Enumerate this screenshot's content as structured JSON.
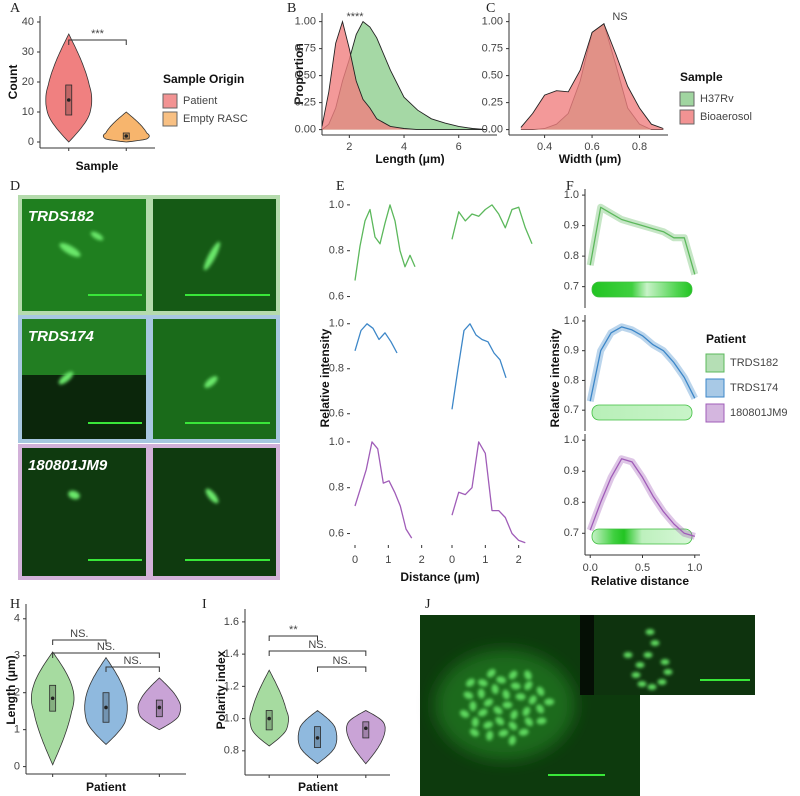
{
  "chart_data": [
    {
      "type": "violin",
      "label": "A",
      "ylabel": "Count",
      "xlabel": "Sample",
      "ylim": [
        -2,
        42
      ],
      "yticks": [
        0,
        10,
        20,
        30,
        40
      ],
      "legend_title": "Sample Origin",
      "annotations": [
        "***"
      ],
      "series": [
        {
          "name": "Patient",
          "color": "#f08080",
          "min": 0,
          "q1": 9,
          "median": 14,
          "q3": 19,
          "max": 36
        },
        {
          "name": "Empty RASC",
          "color": "#f7b56d",
          "min": 0,
          "q1": 1,
          "median": 2,
          "q3": 3,
          "max": 10
        }
      ]
    },
    {
      "type": "area",
      "label": "B",
      "ylabel": "Proportion",
      "xlabel": "Length (μm)",
      "xlim": [
        1,
        7.4
      ],
      "xticks": [
        2,
        4,
        6
      ],
      "ylim": [
        -0.05,
        1.08
      ],
      "yticks": [
        {
          "value": 0,
          "label": "0.00"
        },
        {
          "value": 0.25,
          "label": "0.25"
        },
        {
          "value": 0.5,
          "label": "0.50"
        },
        {
          "value": 0.75,
          "label": "0.75"
        },
        {
          "value": 1,
          "label": "1.00"
        }
      ],
      "annotations": [
        "****"
      ],
      "x": [
        1,
        1.25,
        1.5,
        1.75,
        2,
        2.25,
        2.5,
        2.75,
        3,
        3.5,
        4,
        4.5,
        5,
        5.5,
        6,
        6.5,
        7
      ],
      "series": [
        {
          "color": "#8fce8f",
          "values": [
            0,
            0.05,
            0.2,
            0.45,
            0.65,
            0.88,
            1,
            0.95,
            0.85,
            0.55,
            0.3,
            0.18,
            0.1,
            0.06,
            0.03,
            0.01,
            0
          ]
        },
        {
          "color": "#f08080",
          "values": [
            0.03,
            0.35,
            0.8,
            1,
            0.75,
            0.45,
            0.28,
            0.2,
            0.1,
            0.03,
            0.01,
            0,
            0,
            0,
            0,
            0,
            0
          ]
        }
      ]
    },
    {
      "type": "area",
      "label": "C",
      "xlabel": "Width (μm)",
      "xlim": [
        0.25,
        0.92
      ],
      "xticks": [
        0.4,
        0.6,
        0.8
      ],
      "ylim": [
        -0.05,
        1.08
      ],
      "yticks": [
        {
          "value": 0,
          "label": "0.00"
        },
        {
          "value": 0.25,
          "label": "0.25"
        },
        {
          "value": 0.5,
          "label": "0.50"
        },
        {
          "value": 0.75,
          "label": "0.75"
        },
        {
          "value": 1,
          "label": "1.00"
        }
      ],
      "annotations": [
        "NS"
      ],
      "legend_title": "Sample",
      "x": [
        0.3,
        0.35,
        0.4,
        0.45,
        0.5,
        0.55,
        0.6,
        0.65,
        0.7,
        0.75,
        0.8,
        0.85,
        0.9
      ],
      "series": [
        {
          "name": "H37Rv",
          "color": "#8fce8f",
          "values": [
            0,
            0,
            0.01,
            0.05,
            0.15,
            0.45,
            0.9,
            0.98,
            0.6,
            0.2,
            0.05,
            0,
            0
          ]
        },
        {
          "name": "Bioaerosol",
          "color": "#f08080",
          "values": [
            0.02,
            0.15,
            0.32,
            0.36,
            0.35,
            0.55,
            0.9,
            0.98,
            0.7,
            0.4,
            0.2,
            0.05,
            0.01
          ]
        }
      ]
    },
    {
      "type": "line",
      "label": "E",
      "ylabel": "Relative intensity",
      "xlabel": "Distance (μm)",
      "xlim": [
        -0.15,
        2.55
      ],
      "xticks": [
        0,
        1,
        2
      ],
      "ylim": [
        0.55,
        1.03
      ],
      "yticks": [
        0.6,
        0.8,
        {
          "value": 1,
          "label": "1.0"
        }
      ],
      "series": [
        {
          "color": "#5cb85c",
          "x": [
            0,
            0.15,
            0.3,
            0.45,
            0.6,
            0.75,
            0.9,
            1.05,
            1.2,
            1.35,
            1.5,
            1.65,
            1.8
          ],
          "values": [
            0.67,
            0.82,
            0.93,
            0.98,
            0.86,
            0.83,
            0.92,
            1,
            0.93,
            0.8,
            0.73,
            0.78,
            0.73
          ]
        },
        {
          "color": "#5cb85c",
          "x": [
            0,
            0.2,
            0.4,
            0.6,
            0.8,
            1,
            1.2,
            1.4,
            1.6,
            1.8,
            2,
            2.2,
            2.4
          ],
          "values": [
            0.85,
            0.97,
            0.93,
            0.96,
            0.95,
            0.98,
            1,
            0.96,
            0.9,
            0.98,
            0.99,
            0.9,
            0.83
          ]
        },
        {
          "color": "#3d87c8",
          "x": [
            0,
            0.18,
            0.36,
            0.54,
            0.72,
            0.9,
            1.08,
            1.26
          ],
          "values": [
            0.88,
            0.97,
            1,
            0.98,
            0.93,
            0.96,
            0.92,
            0.87
          ]
        },
        {
          "color": "#3d87c8",
          "x": [
            0,
            0.18,
            0.36,
            0.54,
            0.72,
            0.9,
            1.08,
            1.26,
            1.44,
            1.62
          ],
          "values": [
            0.62,
            0.8,
            0.97,
            1,
            0.95,
            0.93,
            0.92,
            0.87,
            0.84,
            0.76
          ]
        },
        {
          "color": "#a05db8",
          "x": [
            0,
            0.17,
            0.34,
            0.51,
            0.68,
            0.85,
            1.02,
            1.19,
            1.36,
            1.53,
            1.7
          ],
          "values": [
            0.72,
            0.8,
            0.88,
            1,
            0.97,
            0.82,
            0.83,
            0.78,
            0.72,
            0.62,
            0.58
          ]
        },
        {
          "color": "#a05db8",
          "x": [
            0,
            0.2,
            0.4,
            0.6,
            0.8,
            1,
            1.2,
            1.4,
            1.6,
            1.8,
            2,
            2.2
          ],
          "values": [
            0.68,
            0.78,
            0.77,
            0.8,
            1,
            0.95,
            0.7,
            0.7,
            0.67,
            0.6,
            0.57,
            0.56
          ]
        }
      ]
    },
    {
      "type": "line",
      "label": "F",
      "ylabel": "Relative intensity",
      "xlabel": "Relative distance",
      "legend_title": "Patient",
      "xlim": [
        -0.05,
        1.05
      ],
      "xticks": [
        {
          "value": 0,
          "label": "0.0"
        },
        0.5,
        {
          "value": 1,
          "label": "1.0"
        }
      ],
      "ylim": [
        0.63,
        1.02
      ],
      "yticks": [
        0.7,
        0.8,
        0.9,
        {
          "value": 1,
          "label": "1.0"
        }
      ],
      "x": [
        0,
        0.1,
        0.2,
        0.3,
        0.4,
        0.5,
        0.6,
        0.7,
        0.8,
        0.9,
        1
      ],
      "series": [
        {
          "name": "TRDS182",
          "color": "#5cb85c",
          "values": [
            0.77,
            0.96,
            0.94,
            0.92,
            0.91,
            0.9,
            0.89,
            0.88,
            0.86,
            0.86,
            0.74
          ]
        },
        {
          "name": "TRDS174",
          "color": "#3d87c8",
          "values": [
            0.73,
            0.9,
            0.96,
            0.98,
            0.97,
            0.95,
            0.92,
            0.9,
            0.86,
            0.81,
            0.74
          ]
        },
        {
          "name": "180801JM9",
          "color": "#a05db8",
          "values": [
            0.71,
            0.8,
            0.88,
            0.94,
            0.93,
            0.88,
            0.82,
            0.77,
            0.73,
            0.7,
            0.69
          ]
        }
      ]
    },
    {
      "type": "violin",
      "label": "H",
      "ylabel": "Length (μm)",
      "xlabel": "Patient",
      "ylim": [
        -0.2,
        4.4
      ],
      "yticks": [
        0,
        1,
        2,
        3,
        4
      ],
      "annotations": [
        "NS.",
        "NS.",
        "NS."
      ],
      "series": [
        {
          "color": "#a6dba0",
          "min": 0.05,
          "q1": 1.5,
          "median": 1.85,
          "q3": 2.2,
          "max": 3.1
        },
        {
          "color": "#8fb9de",
          "min": 0.6,
          "q1": 1.2,
          "median": 1.6,
          "q3": 2,
          "max": 2.95
        },
        {
          "color": "#c9a3d6",
          "min": 1,
          "q1": 1.35,
          "median": 1.6,
          "q3": 1.8,
          "max": 2.4
        }
      ]
    },
    {
      "type": "violin",
      "label": "I",
      "ylabel": "Polarity index",
      "xlabel": "Patient",
      "ylim": [
        0.65,
        1.68
      ],
      "yticks": [
        0.8,
        {
          "value": 1,
          "label": "1.0"
        },
        1.2,
        1.4,
        1.6
      ],
      "annotations": [
        "**",
        "NS.",
        "NS."
      ],
      "series": [
        {
          "color": "#a6dba0",
          "min": 0.83,
          "q1": 0.93,
          "median": 1,
          "q3": 1.05,
          "max": 1.3
        },
        {
          "color": "#8fb9de",
          "min": 0.72,
          "q1": 0.82,
          "median": 0.88,
          "q3": 0.95,
          "max": 1.05
        },
        {
          "color": "#c9a3d6",
          "min": 0.72,
          "q1": 0.88,
          "median": 0.94,
          "q3": 0.98,
          "max": 1.05
        }
      ]
    }
  ],
  "images": [
    {
      "label": "D",
      "captions": [
        "TRDS182",
        "TRDS174",
        "180801JM9"
      ]
    },
    {
      "label": "J"
    }
  ]
}
